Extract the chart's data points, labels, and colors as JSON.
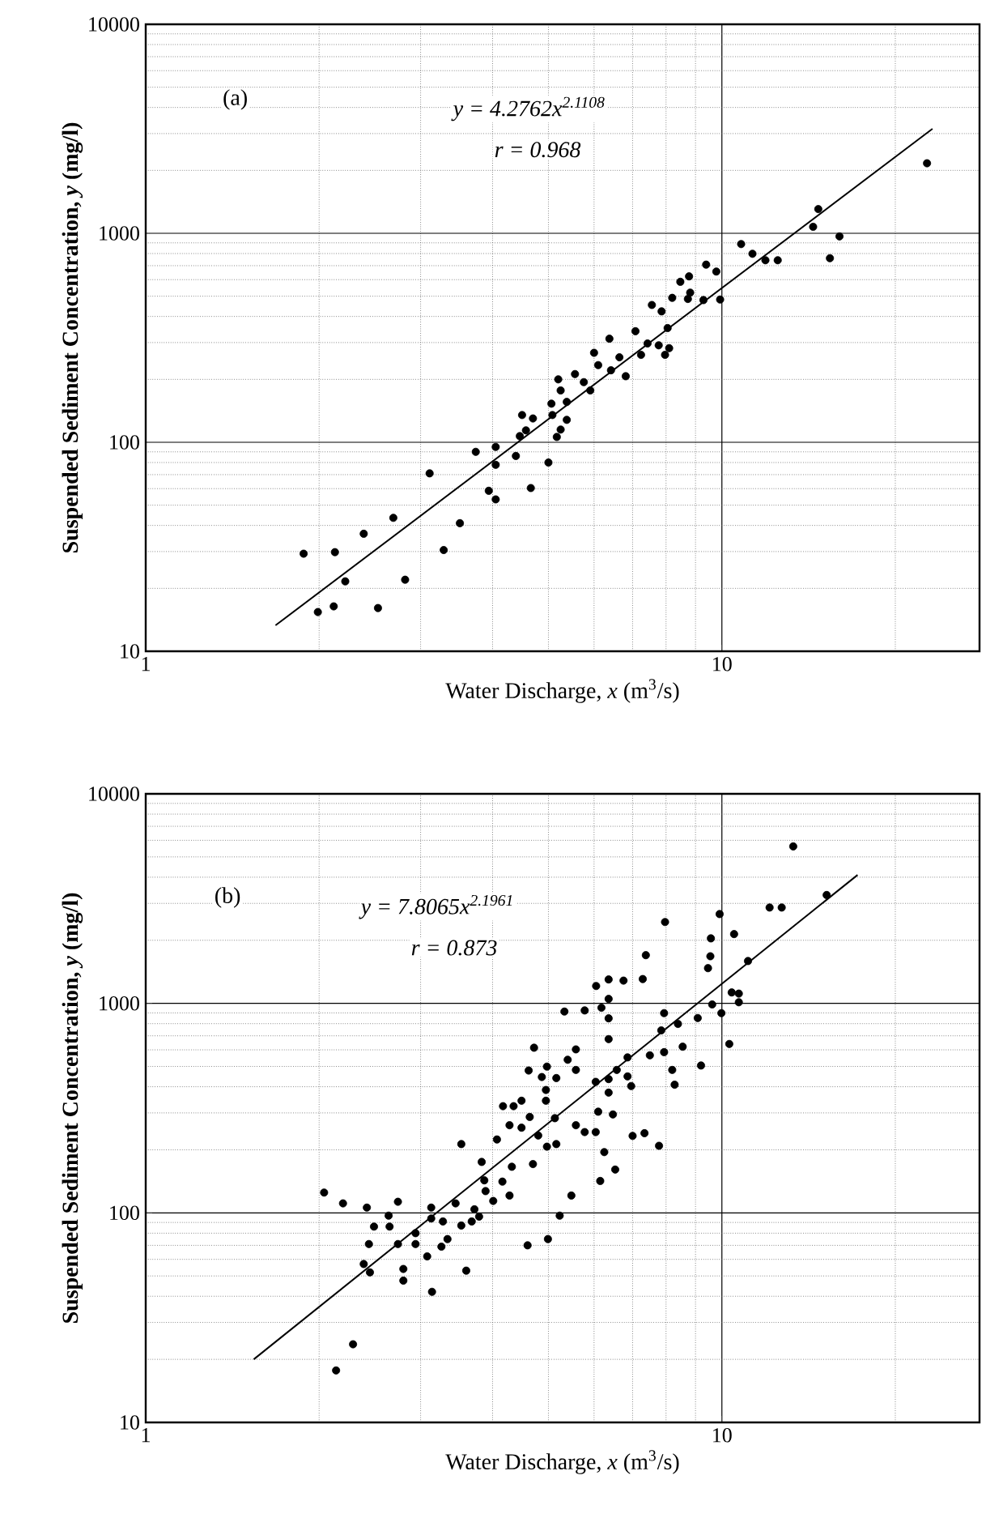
{
  "chart_data": [
    {
      "type": "scatter",
      "xlabel": "Water Discharge, *x* (m$^{3}$/s)",
      "ylabel": "Suspended Sediment Concentration, *y* (mg/l)",
      "annotations": [
        "(a)",
        "y = 4.2762x$^{2.1108}$",
        "r = 0.968"
      ],
      "xlim": [
        1,
        28
      ],
      "ylim": [
        10,
        10000
      ],
      "xticks": [
        1,
        10
      ],
      "yticks": [
        10,
        100,
        1000,
        10000
      ],
      "log": "xy",
      "grid": true,
      "series": [
        {
          "marker": "circle",
          "color": "#000000",
          "x": [
            1.88,
            2.13,
            1.99,
            2.12,
            2.22,
            2.39,
            2.69,
            2.53,
            2.82,
            3.29,
            3.51,
            3.11,
            3.74,
            4.05,
            4.05,
            3.94,
            4.05,
            4.39,
            4.66,
            5.0,
            4.46,
            4.5,
            4.7,
            4.57,
            5.08,
            5.06,
            5.2,
            5.25,
            5.38,
            5.38,
            5.25,
            5.17,
            5.56,
            5.76,
            5.91,
            6.0,
            6.1,
            6.38,
            6.42,
            6.64,
            6.81,
            7.08,
            7.24,
            7.43,
            7.56,
            7.86,
            7.77,
            7.97,
            8.1,
            8.05,
            8.2,
            8.47,
            8.77,
            8.81,
            8.73,
            9.29,
            9.39,
            9.78,
            9.93,
            10.8,
            11.3,
            11.9,
            12.5,
            14.4,
            14.7,
            16.0,
            15.4,
            22.7
          ],
          "values": [
            29.3,
            29.8,
            15.4,
            16.4,
            21.6,
            36.5,
            43.5,
            16.1,
            22.0,
            30.5,
            41.0,
            71,
            90,
            95,
            78,
            58.6,
            53.3,
            86,
            60.4,
            80,
            107,
            135,
            130,
            114,
            135,
            153,
            200,
            177,
            156,
            128,
            115,
            106,
            212,
            194,
            177,
            268,
            234,
            313,
            221,
            255,
            207,
            340,
            262,
            297,
            454,
            423,
            291,
            262,
            282,
            352,
            491,
            586,
            622,
            520,
            485,
            479,
            708,
            656,
            482,
            888,
            798,
            743,
            743,
            1074,
            1306,
            966,
            760,
            2163
          ]
        },
        {
          "type": "line",
          "marker": "none",
          "color": "#000000",
          "x": [
            1.68,
            23.2
          ],
          "values": [
            13.3,
            3160
          ]
        }
      ]
    },
    {
      "type": "scatter",
      "xlabel": "Water Discharge, *x* (m$^{3}$/s)",
      "ylabel": "Suspended Sediment Concentration, *y* (mg/l)",
      "annotations": [
        "(b)",
        "y = 7.8065x$^{2.1961}$",
        "r = 0.873"
      ],
      "xlim": [
        1,
        28
      ],
      "ylim": [
        10,
        10000
      ],
      "xticks": [
        1,
        10
      ],
      "yticks": [
        10,
        100,
        1000,
        10000
      ],
      "log": "xy",
      "grid": true,
      "series": [
        {
          "marker": "circle",
          "color": "#000000",
          "x": [
            2.04,
            2.2,
            2.14,
            2.29,
            2.42,
            2.49,
            2.44,
            2.39,
            2.45,
            2.64,
            2.74,
            2.65,
            2.74,
            2.8,
            2.8,
            2.94,
            2.94,
            3.08,
            3.14,
            3.13,
            3.13,
            3.28,
            3.34,
            3.26,
            3.45,
            3.53,
            3.53,
            3.6,
            3.72,
            3.68,
            3.79,
            3.83,
            3.87,
            3.89,
            4.01,
            4.16,
            4.28,
            4.32,
            4.07,
            4.28,
            4.17,
            4.35,
            4.49,
            4.49,
            4.64,
            4.7,
            4.72,
            4.62,
            4.87,
            4.97,
            4.95,
            4.95,
            4.8,
            4.97,
            4.99,
            4.6,
            5.16,
            5.16,
            5.13,
            5.23,
            5.33,
            5.4,
            5.58,
            5.58,
            5.58,
            5.48,
            5.78,
            5.78,
            6.04,
            6.04,
            6.05,
            6.15,
            6.18,
            6.1,
            6.25,
            6.36,
            6.36,
            6.36,
            6.36,
            6.36,
            6.36,
            6.47,
            6.53,
            6.57,
            6.75,
            6.86,
            6.86,
            6.96,
            7.0,
            7.29,
            7.38,
            7.34,
            7.5,
            7.78,
            7.85,
            7.94,
            7.97,
            7.94,
            8.2,
            8.28,
            8.39,
            8.55,
            9.08,
            9.2,
            9.46,
            9.55,
            9.57,
            9.62,
            9.91,
            9.98,
            10.3,
            10.4,
            10.5,
            10.7,
            10.7,
            11.1,
            12.1,
            12.7,
            13.3,
            15.2
          ],
          "values": [
            125,
            111,
            17.7,
            23.6,
            106,
            86,
            71,
            57,
            52,
            97,
            113,
            86,
            71,
            54,
            47.5,
            71,
            80,
            62,
            42,
            106,
            94,
            91,
            75,
            69,
            111,
            213,
            87,
            53,
            104,
            91,
            96,
            175,
            143,
            127,
            114,
            141,
            121,
            166,
            224,
            262,
            323,
            323,
            343,
            255,
            287,
            171,
            614,
            478,
            445,
            499,
            343,
            386,
            234,
            207,
            75,
            70,
            213,
            440,
            283,
            97,
            914,
            538,
            603,
            481,
            262,
            121,
            925,
            243,
            422,
            243,
            1210,
            142,
            953,
            304,
            195,
            1300,
            1050,
            848,
            675,
            435,
            375,
            295,
            161,
            481,
            1284,
            552,
            448,
            403,
            233,
            1306,
            1698,
            240,
            565,
            209,
            743,
            898,
            2444,
            585,
            481,
            409,
            798,
            621,
            851,
            505,
            1472,
            1678,
            2042,
            988,
            2667,
            898,
            640,
            1127,
            2141,
            1012,
            1113,
            1592,
            2866,
            2866,
            5610,
            3289
          ]
        },
        {
          "type": "line",
          "marker": "none",
          "color": "#000000",
          "x": [
            1.54,
            17.2
          ],
          "values": [
            20.0,
            4100
          ]
        }
      ]
    }
  ]
}
